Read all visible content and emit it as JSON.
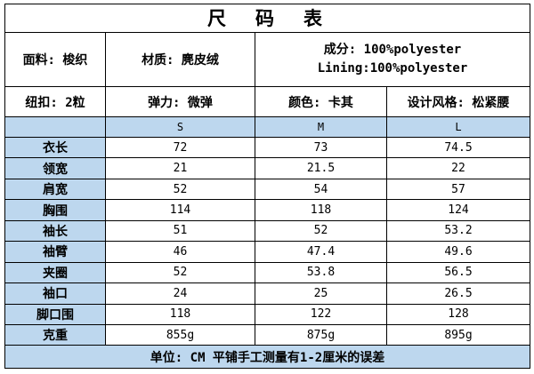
{
  "title": "尺　码　表",
  "info": {
    "fabric": "面料: 梭织",
    "material": "材质: 麂皮绒",
    "composition_line1": "成分: 100%polyester",
    "composition_line2": "Lining:100%polyester",
    "buttons": "纽扣: 2粒",
    "elasticity": "弹力: 微弹",
    "color": "颜色: 卡其",
    "design": "设计风格: 松紧腰"
  },
  "chart_data": {
    "type": "table",
    "title": "尺码表",
    "columns": [
      "",
      "S",
      "M",
      "L"
    ],
    "rows": [
      {
        "label": "衣长",
        "values": [
          "72",
          "73",
          "74.5"
        ]
      },
      {
        "label": "领宽",
        "values": [
          "21",
          "21.5",
          "22"
        ]
      },
      {
        "label": "肩宽",
        "values": [
          "52",
          "54",
          "57"
        ]
      },
      {
        "label": "胸围",
        "values": [
          "114",
          "118",
          "124"
        ]
      },
      {
        "label": "袖长",
        "values": [
          "51",
          "52",
          "53.2"
        ]
      },
      {
        "label": "袖臂",
        "values": [
          "46",
          "47.4",
          "49.6"
        ]
      },
      {
        "label": "夹圈",
        "values": [
          "52",
          "53.8",
          "56.5"
        ]
      },
      {
        "label": "袖口",
        "values": [
          "24",
          "25",
          "26.5"
        ]
      },
      {
        "label": "脚口围",
        "values": [
          "118",
          "122",
          "128"
        ]
      },
      {
        "label": "克重",
        "values": [
          "855g",
          "875g",
          "895g"
        ]
      }
    ]
  },
  "footer": "单位: CM 平铺手工测量有1-2厘米的误差",
  "colors": {
    "header_bg": "#BDD7EE",
    "border": "#000000",
    "text": "#000000",
    "background": "#FFFFFF"
  }
}
